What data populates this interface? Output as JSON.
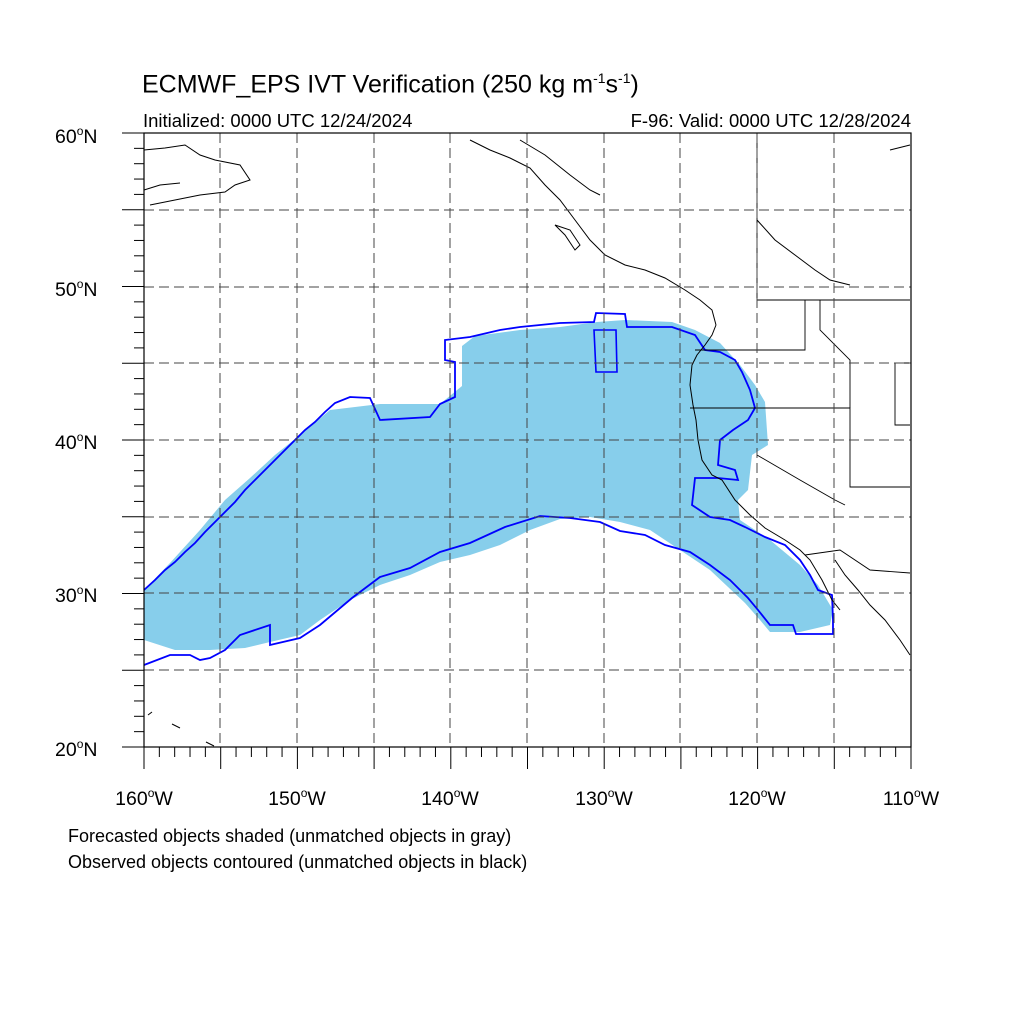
{
  "header": {
    "title_main": "ECMWF_EPS IVT Verification (250 kg m",
    "title_exp1": "-1",
    "title_mid": "s",
    "title_exp2": "-1",
    "title_end": ")",
    "initialized": "Initialized: 0000 UTC 12/24/2024",
    "valid": "F-96: Valid: 0000 UTC 12/28/2024"
  },
  "axes": {
    "lat_labels": [
      {
        "value": "60",
        "suffix": "N"
      },
      {
        "value": "50",
        "suffix": "N"
      },
      {
        "value": "40",
        "suffix": "N"
      },
      {
        "value": "30",
        "suffix": "N"
      },
      {
        "value": "20",
        "suffix": "N"
      }
    ],
    "lon_labels": [
      {
        "value": "160",
        "suffix": "W"
      },
      {
        "value": "150",
        "suffix": "W"
      },
      {
        "value": "140",
        "suffix": "W"
      },
      {
        "value": "130",
        "suffix": "W"
      },
      {
        "value": "120",
        "suffix": "W"
      },
      {
        "value": "110",
        "suffix": "W"
      }
    ],
    "degree_symbol": "o",
    "lon_range": [
      -160,
      -110
    ],
    "lat_range": [
      20,
      60
    ],
    "grid": "dashed every 5 degrees"
  },
  "legend": {
    "line1": "Forecasted objects shaded (unmatched objects in gray)",
    "line2": "Observed objects contoured (unmatched objects in black)"
  },
  "colors": {
    "forecast_fill": "#87ceeb",
    "observed_contour": "#0000ff",
    "coastline": "#000000",
    "grid": "#333333"
  }
}
